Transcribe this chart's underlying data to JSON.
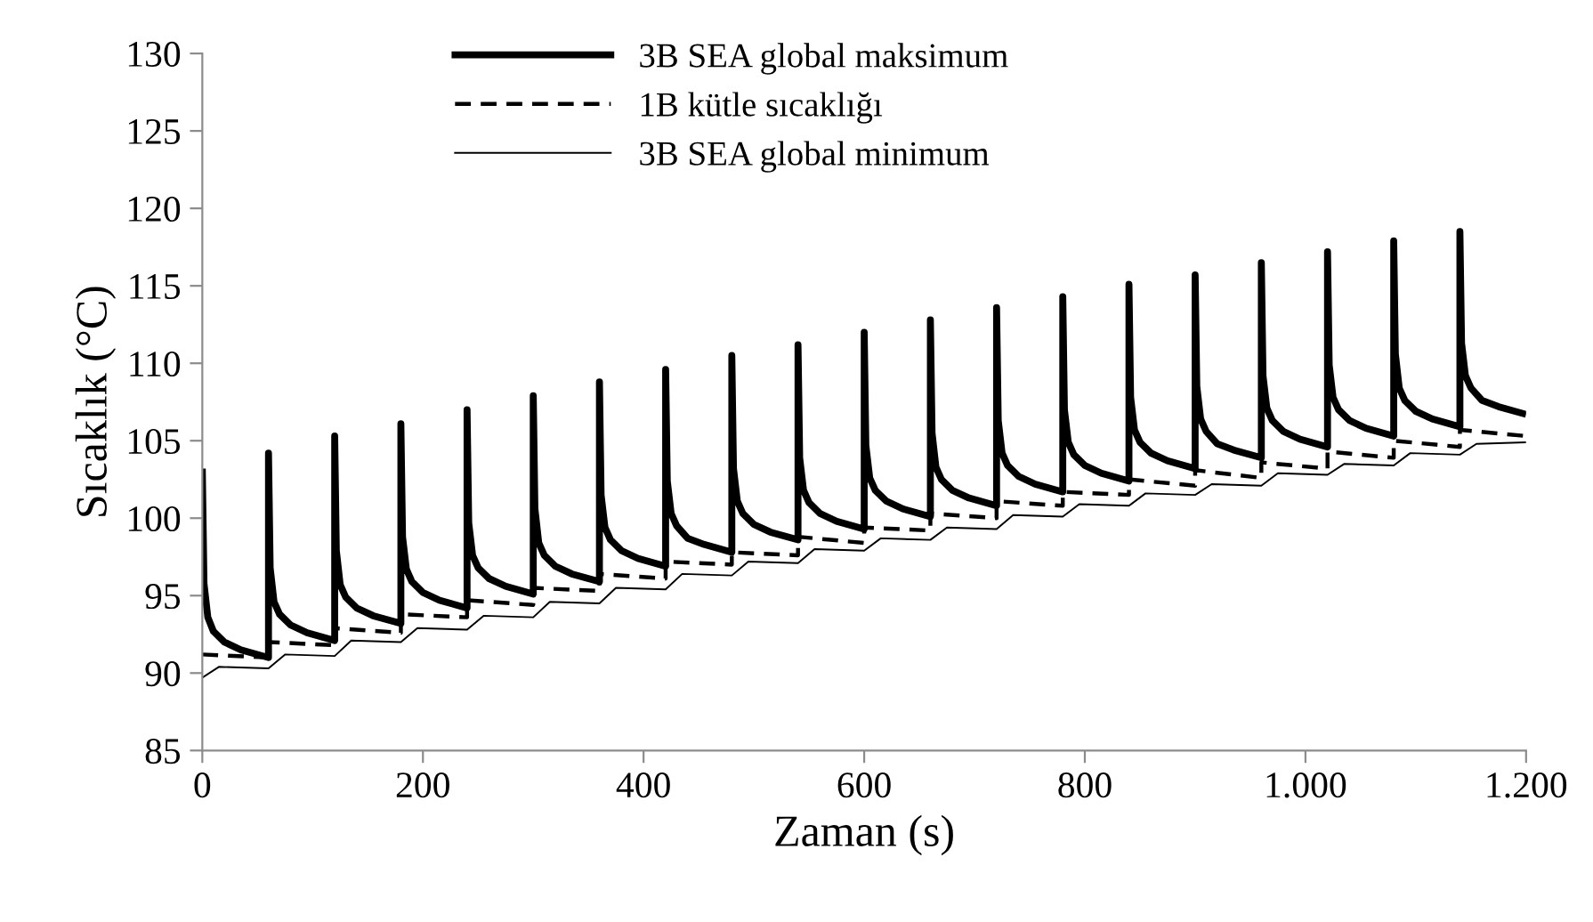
{
  "chart_data": {
    "type": "line",
    "xlabel": "Zaman (s)",
    "ylabel": "Sıcaklık (°C)",
    "xlim": [
      0,
      1200
    ],
    "xticks": [
      0,
      200,
      400,
      600,
      800,
      {
        "value": 1000,
        "label": "1.000"
      },
      {
        "value": 1200,
        "label": "1.200"
      }
    ],
    "ylim": [
      85,
      130
    ],
    "yticks": [
      85,
      90,
      95,
      100,
      105,
      110,
      115,
      120,
      125,
      130
    ],
    "grid": false,
    "legend": "top",
    "marker": "none",
    "series": [
      {
        "name": "3B SEA global maksimum",
        "color": "#000000",
        "line_style": "solid",
        "x": [
          0,
          1.5,
          5,
          10,
          20,
          35,
          60,
          60,
          61.5,
          65,
          70,
          80,
          95,
          120,
          120,
          121.5,
          125,
          130,
          140,
          155,
          180,
          180,
          181.5,
          185,
          190,
          200,
          215,
          240,
          240,
          241.5,
          245,
          250,
          260,
          275,
          300,
          300,
          301.5,
          305,
          310,
          320,
          335,
          360,
          360,
          361.5,
          365,
          370,
          380,
          395,
          420,
          420,
          421.5,
          425,
          430,
          440,
          455,
          480,
          480,
          481.5,
          485,
          490,
          500,
          515,
          540,
          540,
          541.5,
          545,
          550,
          560,
          575,
          600,
          600,
          601.5,
          605,
          610,
          620,
          635,
          660,
          660,
          661.5,
          665,
          670,
          680,
          695,
          720,
          720,
          721.5,
          725,
          730,
          740,
          755,
          780,
          780,
          781.5,
          785,
          790,
          800,
          815,
          840,
          840,
          841.5,
          845,
          850,
          860,
          875,
          900,
          900,
          901.5,
          905,
          910,
          920,
          935,
          960,
          960,
          961.5,
          965,
          970,
          980,
          995,
          1020,
          1020,
          1021.5,
          1025,
          1030,
          1040,
          1055,
          1080,
          1080,
          1081.5,
          1085,
          1090,
          1100,
          1115,
          1140,
          1140,
          1141.5,
          1145,
          1150,
          1160,
          1175,
          1200
        ],
        "values": [
          103.2,
          95.8,
          93.6,
          92.7,
          92.0,
          91.5,
          91.0,
          104.2,
          96.8,
          94.6,
          93.8,
          93.1,
          92.6,
          92.1,
          105.3,
          97.9,
          95.7,
          94.9,
          94.2,
          93.7,
          93.2,
          106.1,
          98.8,
          96.7,
          95.9,
          95.2,
          94.7,
          94.2,
          107.0,
          99.7,
          97.6,
          96.8,
          96.1,
          95.6,
          95.1,
          107.9,
          100.6,
          98.4,
          97.6,
          96.9,
          96.4,
          95.9,
          108.8,
          101.5,
          99.4,
          98.6,
          97.9,
          97.4,
          96.9,
          109.6,
          102.4,
          100.3,
          99.5,
          98.7,
          98.3,
          97.8,
          110.5,
          103.2,
          101.1,
          100.3,
          99.6,
          99.1,
          98.6,
          111.2,
          103.9,
          101.8,
          101.0,
          100.3,
          99.8,
          99.3,
          112.0,
          104.7,
          102.6,
          101.8,
          101.1,
          100.6,
          100.1,
          112.8,
          105.5,
          103.3,
          102.5,
          101.8,
          101.3,
          100.8,
          113.6,
          106.3,
          104.2,
          103.4,
          102.7,
          102.2,
          101.7,
          114.3,
          107.0,
          104.9,
          104.1,
          103.4,
          102.9,
          102.4,
          115.1,
          107.8,
          105.7,
          104.9,
          104.2,
          103.7,
          103.2,
          115.7,
          108.5,
          106.4,
          105.6,
          104.8,
          104.4,
          103.9,
          116.5,
          109.2,
          107.1,
          106.3,
          105.6,
          105.1,
          104.6,
          117.2,
          109.9,
          107.8,
          107.0,
          106.3,
          105.8,
          105.3,
          117.9,
          110.6,
          108.4,
          107.6,
          106.9,
          106.4,
          105.9,
          118.5,
          111.3,
          109.2,
          108.4,
          107.6,
          107.2,
          106.7
        ]
      },
      {
        "name": "1B kütle sıcaklığı",
        "color": "#000000",
        "line_style": "dashed",
        "x": [
          0,
          60,
          60,
          120,
          120,
          180,
          180,
          240,
          240,
          300,
          300,
          360,
          360,
          420,
          420,
          480,
          480,
          540,
          540,
          600,
          600,
          660,
          660,
          720,
          720,
          780,
          780,
          840,
          840,
          900,
          900,
          960,
          960,
          1020,
          1020,
          1080,
          1080,
          1140,
          1140,
          1200
        ],
        "values": [
          91.2,
          91.0,
          92.0,
          91.8,
          92.9,
          92.6,
          93.8,
          93.6,
          94.7,
          94.4,
          95.5,
          95.3,
          96.4,
          96.1,
          97.2,
          97.0,
          97.8,
          97.6,
          98.8,
          98.4,
          99.4,
          99.2,
          100.3,
          100.0,
          101.1,
          100.8,
          101.7,
          101.5,
          102.5,
          102.1,
          103.1,
          102.6,
          103.6,
          103.2,
          104.3,
          103.9,
          105.0,
          104.6,
          105.7,
          105.3
        ]
      },
      {
        "name": "3B SEA global minimum",
        "color": "#000000",
        "line_style": "solid",
        "x": [
          0,
          15,
          60,
          75,
          120,
          135,
          180,
          195,
          240,
          255,
          300,
          315,
          360,
          375,
          420,
          435,
          480,
          495,
          540,
          555,
          600,
          615,
          660,
          675,
          720,
          735,
          780,
          795,
          840,
          855,
          900,
          915,
          960,
          975,
          1020,
          1035,
          1080,
          1095,
          1140,
          1155,
          1200
        ],
        "values": [
          89.7,
          90.4,
          90.3,
          91.2,
          91.1,
          92.1,
          92.0,
          92.9,
          92.8,
          93.7,
          93.6,
          94.6,
          94.5,
          95.5,
          95.4,
          96.4,
          96.3,
          97.2,
          97.1,
          98.0,
          97.9,
          98.7,
          98.6,
          99.4,
          99.3,
          100.2,
          100.1,
          100.9,
          100.8,
          101.6,
          101.5,
          102.2,
          102.1,
          102.9,
          102.8,
          103.5,
          103.4,
          104.2,
          104.1,
          104.8,
          104.9
        ]
      }
    ]
  }
}
